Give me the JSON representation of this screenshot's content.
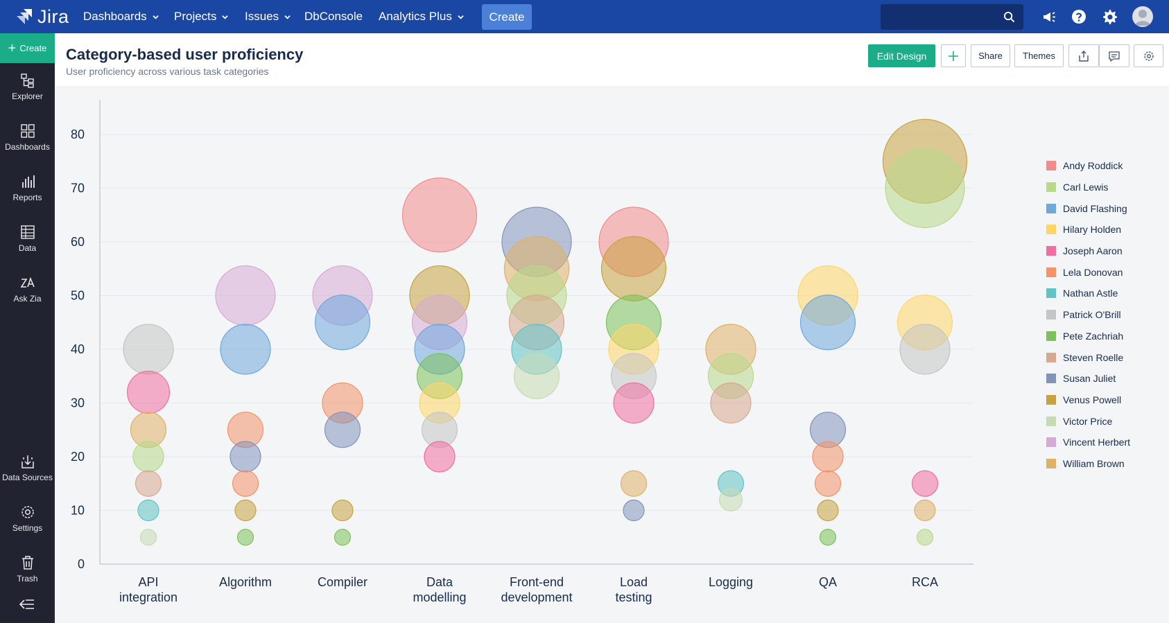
{
  "app": {
    "logo_text": "Jira",
    "nav": {
      "dashboards": "Dashboards",
      "projects": "Projects",
      "issues": "Issues",
      "dbconsole": "DbConsole",
      "analytics_plus": "Analytics Plus",
      "create": "Create"
    }
  },
  "sidebar": {
    "create": "Create",
    "items": [
      {
        "label": "Explorer",
        "icon": "explorer-icon"
      },
      {
        "label": "Dashboards",
        "icon": "dashboards-icon"
      },
      {
        "label": "Reports",
        "icon": "reports-icon"
      },
      {
        "label": "Data",
        "icon": "data-icon"
      },
      {
        "label": "Ask Zia",
        "icon": "ask-zia-icon"
      },
      {
        "label": "Data Sources",
        "icon": "data-sources-icon"
      },
      {
        "label": "Settings",
        "icon": "settings-icon"
      },
      {
        "label": "Trash",
        "icon": "trash-icon"
      }
    ]
  },
  "header": {
    "title": "Category-based user proficiency",
    "subtitle": "User proficiency across various task categories",
    "edit_design": "Edit Design",
    "add_icon": "plus-icon",
    "share": "Share",
    "themes": "Themes"
  },
  "colors": {
    "topbar": "#1a47a3",
    "sidebar": "#212430",
    "accent_green": "#1bac88"
  },
  "chart_data": {
    "type": "scatter",
    "title": "",
    "xlabel": "",
    "ylabel": "",
    "ylim": [
      0,
      85
    ],
    "yticks": [
      0,
      10,
      20,
      30,
      40,
      50,
      60,
      70,
      80
    ],
    "grid": true,
    "legend_placement": "right",
    "categories": [
      "API integration",
      "Algorithm",
      "Compiler",
      "Data modelling",
      "Front-end development",
      "Load testing",
      "Logging",
      "QA",
      "RCA"
    ],
    "category_lines": [
      [
        "API",
        "integration"
      ],
      [
        "Algorithm"
      ],
      [
        "Compiler"
      ],
      [
        "Data",
        "modelling"
      ],
      [
        "Front-end",
        "development"
      ],
      [
        "Load",
        "testing"
      ],
      [
        "Logging"
      ],
      [
        "QA"
      ],
      [
        "RCA"
      ]
    ],
    "series": [
      {
        "name": "Andy Roddick",
        "color": "#f28b8b",
        "points": [
          {
            "x": "Data modelling",
            "y": 65
          },
          {
            "x": "Load testing",
            "y": 60
          }
        ]
      },
      {
        "name": "Carl Lewis",
        "color": "#b8d98a",
        "points": [
          {
            "x": "RCA",
            "y": 70
          },
          {
            "x": "Front-end development",
            "y": 50
          },
          {
            "x": "API integration",
            "y": 20
          },
          {
            "x": "Logging",
            "y": 35
          },
          {
            "x": "RCA",
            "y": 5
          }
        ]
      },
      {
        "name": "David Flashing",
        "color": "#6fa8dc",
        "points": [
          {
            "x": "Algorithm",
            "y": 40
          },
          {
            "x": "Compiler",
            "y": 45
          },
          {
            "x": "QA",
            "y": 45
          },
          {
            "x": "Data modelling",
            "y": 40
          }
        ]
      },
      {
        "name": "Hilary Holden",
        "color": "#ffd666",
        "points": [
          {
            "x": "QA",
            "y": 50
          },
          {
            "x": "RCA",
            "y": 45
          },
          {
            "x": "Load testing",
            "y": 40
          },
          {
            "x": "Data modelling",
            "y": 30
          }
        ]
      },
      {
        "name": "Joseph Aaron",
        "color": "#f06fa0",
        "points": [
          {
            "x": "API integration",
            "y": 32
          },
          {
            "x": "Load testing",
            "y": 30
          },
          {
            "x": "Data modelling",
            "y": 20
          },
          {
            "x": "RCA",
            "y": 15
          }
        ]
      },
      {
        "name": "Lela Donovan",
        "color": "#f4926a",
        "points": [
          {
            "x": "Compiler",
            "y": 30
          },
          {
            "x": "Algorithm",
            "y": 25
          },
          {
            "x": "QA",
            "y": 20
          },
          {
            "x": "Algorithm",
            "y": 15
          },
          {
            "x": "QA",
            "y": 15
          }
        ]
      },
      {
        "name": "Nathan Astle",
        "color": "#5fc3c7",
        "points": [
          {
            "x": "Front-end development",
            "y": 40
          },
          {
            "x": "API integration",
            "y": 10
          },
          {
            "x": "Logging",
            "y": 15
          }
        ]
      },
      {
        "name": "Patrick O'Brill",
        "color": "#c5c5c5",
        "points": [
          {
            "x": "API integration",
            "y": 40
          },
          {
            "x": "RCA",
            "y": 40
          },
          {
            "x": "Load testing",
            "y": 35
          },
          {
            "x": "Data modelling",
            "y": 25
          }
        ]
      },
      {
        "name": "Pete Zachriah",
        "color": "#7cc15a",
        "points": [
          {
            "x": "Load testing",
            "y": 45
          },
          {
            "x": "Data modelling",
            "y": 35
          },
          {
            "x": "Algorithm",
            "y": 5
          },
          {
            "x": "Compiler",
            "y": 5
          },
          {
            "x": "QA",
            "y": 5
          }
        ]
      },
      {
        "name": "Steven Roelle",
        "color": "#d7a890",
        "points": [
          {
            "x": "Front-end development",
            "y": 45
          },
          {
            "x": "Logging",
            "y": 30
          },
          {
            "x": "API integration",
            "y": 15
          }
        ]
      },
      {
        "name": "Susan Juliet",
        "color": "#8394bb",
        "points": [
          {
            "x": "Front-end development",
            "y": 60
          },
          {
            "x": "Compiler",
            "y": 25
          },
          {
            "x": "QA",
            "y": 25
          },
          {
            "x": "Algorithm",
            "y": 20
          },
          {
            "x": "Load testing",
            "y": 10
          }
        ]
      },
      {
        "name": "Venus Powell",
        "color": "#c9a23f",
        "points": [
          {
            "x": "RCA",
            "y": 75
          },
          {
            "x": "Data modelling",
            "y": 50
          },
          {
            "x": "Load testing",
            "y": 55
          },
          {
            "x": "Algorithm",
            "y": 10
          },
          {
            "x": "Compiler",
            "y": 10
          },
          {
            "x": "QA",
            "y": 10
          }
        ]
      },
      {
        "name": "Victor Price",
        "color": "#c6dbb2",
        "points": [
          {
            "x": "Front-end development",
            "y": 35
          },
          {
            "x": "Logging",
            "y": 12
          },
          {
            "x": "API integration",
            "y": 5
          }
        ]
      },
      {
        "name": "Vincent Herbert",
        "color": "#d6aad6",
        "points": [
          {
            "x": "Algorithm",
            "y": 50
          },
          {
            "x": "Compiler",
            "y": 50
          },
          {
            "x": "Data modelling",
            "y": 45
          }
        ]
      },
      {
        "name": "William Brown",
        "color": "#e0b068",
        "points": [
          {
            "x": "Front-end development",
            "y": 55
          },
          {
            "x": "Logging",
            "y": 40
          },
          {
            "x": "API integration",
            "y": 25
          },
          {
            "x": "Load testing",
            "y": 15
          },
          {
            "x": "RCA",
            "y": 10
          }
        ]
      }
    ]
  }
}
